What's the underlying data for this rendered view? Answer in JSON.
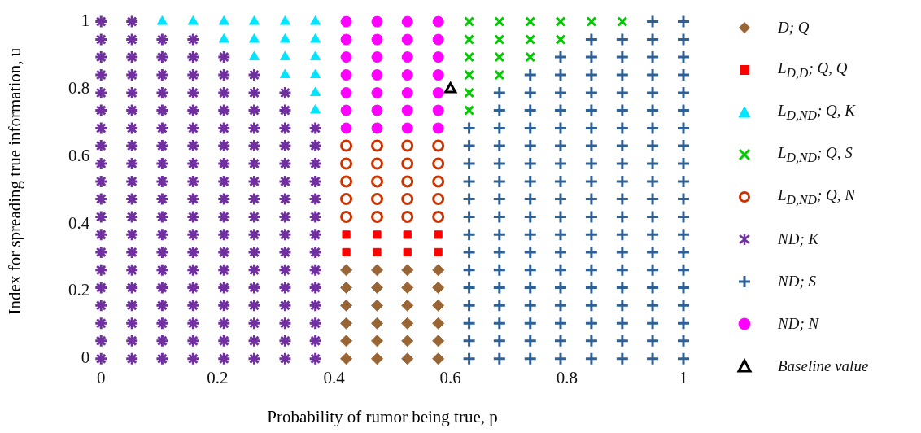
{
  "chart_data": {
    "type": "scatter",
    "xlabel": "Probability of rumor being true, p",
    "ylabel": "Index for spreading true information, u",
    "xlim": [
      0,
      1
    ],
    "ylim": [
      0,
      1
    ],
    "xticks": [
      0,
      0.2,
      0.4,
      0.6,
      0.8,
      1
    ],
    "yticks": [
      0,
      0.2,
      0.4,
      0.6,
      0.8,
      1
    ],
    "grid": false,
    "legend": "right",
    "series": [
      {
        "name": "D; Q",
        "color": "#9a6535",
        "marker": "diamond",
        "x": [
          0.421,
          0.421,
          0.421,
          0.421,
          0.421,
          0.421,
          0.474,
          0.474,
          0.474,
          0.474,
          0.474,
          0.474,
          0.526,
          0.526,
          0.526,
          0.526,
          0.526,
          0.526,
          0.579,
          0.579,
          0.579,
          0.579,
          0.579,
          0.579
        ],
        "values": [
          0,
          0.053,
          0.105,
          0.158,
          0.211,
          0.263,
          0,
          0.053,
          0.105,
          0.158,
          0.211,
          0.263,
          0,
          0.053,
          0.105,
          0.158,
          0.211,
          0.263,
          0,
          0.053,
          0.105,
          0.158,
          0.211,
          0.263
        ]
      },
      {
        "name": "L$_{D,D}$; Q, Q",
        "color": "#ff0000",
        "marker": "square",
        "x": [
          0.421,
          0.421,
          0.474,
          0.474,
          0.526,
          0.526,
          0.579,
          0.579
        ],
        "values": [
          0.316,
          0.368,
          0.316,
          0.368,
          0.316,
          0.368,
          0.316,
          0.368
        ]
      },
      {
        "name": "L$_{D,ND}$; Q, K",
        "color": "#00e5ff",
        "marker": "triangle",
        "x": [
          0.105,
          0.158,
          0.211,
          0.211,
          0.263,
          0.263,
          0.263,
          0.316,
          0.316,
          0.316,
          0.316,
          0.368,
          0.368,
          0.368,
          0.368,
          0.368,
          0.368
        ],
        "values": [
          1,
          1,
          1,
          0.947,
          1,
          0.947,
          0.895,
          1,
          0.947,
          0.895,
          0.842,
          1,
          0.947,
          0.895,
          0.842,
          0.789,
          0.737
        ]
      },
      {
        "name": "L$_{D,ND}$; Q, S",
        "color": "#00cc00",
        "marker": "x",
        "x": [
          0.632,
          0.632,
          0.632,
          0.632,
          0.632,
          0.632,
          0.684,
          0.684,
          0.684,
          0.684,
          0.737,
          0.737,
          0.737,
          0.789,
          0.789,
          0.842,
          0.895
        ],
        "values": [
          1,
          0.947,
          0.895,
          0.842,
          0.789,
          0.737,
          1,
          0.947,
          0.895,
          0.842,
          1,
          0.947,
          0.895,
          1,
          0.947,
          1,
          1
        ]
      },
      {
        "name": "L$_{D,ND}$; Q, N",
        "color": "#cc3300",
        "marker": "circle-open",
        "x": [
          0.421,
          0.421,
          0.421,
          0.421,
          0.421,
          0.474,
          0.474,
          0.474,
          0.474,
          0.474,
          0.526,
          0.526,
          0.526,
          0.526,
          0.526,
          0.579,
          0.579,
          0.579,
          0.579,
          0.579
        ],
        "values": [
          0.421,
          0.474,
          0.526,
          0.579,
          0.632,
          0.421,
          0.474,
          0.526,
          0.579,
          0.632,
          0.421,
          0.474,
          0.526,
          0.579,
          0.632,
          0.421,
          0.474,
          0.526,
          0.579,
          0.632
        ]
      },
      {
        "name": "ND; K",
        "color": "#7030a0",
        "marker": "cross",
        "x": [
          0,
          0,
          0,
          0,
          0,
          0,
          0,
          0,
          0,
          0,
          0,
          0,
          0,
          0,
          0,
          0,
          0,
          0,
          0,
          0,
          0.053,
          0.053,
          0.053,
          0.053,
          0.053,
          0.053,
          0.053,
          0.053,
          0.053,
          0.053,
          0.053,
          0.053,
          0.053,
          0.053,
          0.053,
          0.053,
          0.053,
          0.053,
          0.053,
          0.053,
          0.105,
          0.105,
          0.105,
          0.105,
          0.105,
          0.105,
          0.105,
          0.105,
          0.105,
          0.105,
          0.105,
          0.105,
          0.105,
          0.105,
          0.105,
          0.105,
          0.105,
          0.105,
          0.105,
          0.158,
          0.158,
          0.158,
          0.158,
          0.158,
          0.158,
          0.158,
          0.158,
          0.158,
          0.158,
          0.158,
          0.158,
          0.158,
          0.158,
          0.158,
          0.158,
          0.158,
          0.158,
          0.158,
          0.211,
          0.211,
          0.211,
          0.211,
          0.211,
          0.211,
          0.211,
          0.211,
          0.211,
          0.211,
          0.211,
          0.211,
          0.211,
          0.211,
          0.211,
          0.211,
          0.211,
          0.211,
          0.263,
          0.263,
          0.263,
          0.263,
          0.263,
          0.263,
          0.263,
          0.263,
          0.263,
          0.263,
          0.263,
          0.263,
          0.263,
          0.263,
          0.263,
          0.263,
          0.263,
          0.316,
          0.316,
          0.316,
          0.316,
          0.316,
          0.316,
          0.316,
          0.316,
          0.316,
          0.316,
          0.316,
          0.316,
          0.316,
          0.316,
          0.316,
          0.316,
          0.368,
          0.368,
          0.368,
          0.368,
          0.368,
          0.368,
          0.368,
          0.368,
          0.368,
          0.368,
          0.368,
          0.368,
          0.368,
          0.368
        ],
        "values": [
          0,
          0.053,
          0.105,
          0.158,
          0.211,
          0.263,
          0.316,
          0.368,
          0.421,
          0.474,
          0.526,
          0.579,
          0.632,
          0.684,
          0.737,
          0.789,
          0.842,
          0.895,
          0.947,
          1,
          0,
          0.053,
          0.105,
          0.158,
          0.211,
          0.263,
          0.316,
          0.368,
          0.421,
          0.474,
          0.526,
          0.579,
          0.632,
          0.684,
          0.737,
          0.789,
          0.842,
          0.895,
          0.947,
          1,
          0,
          0.053,
          0.105,
          0.158,
          0.211,
          0.263,
          0.316,
          0.368,
          0.421,
          0.474,
          0.526,
          0.579,
          0.632,
          0.684,
          0.737,
          0.789,
          0.842,
          0.895,
          0.947,
          0,
          0.053,
          0.105,
          0.158,
          0.211,
          0.263,
          0.316,
          0.368,
          0.421,
          0.474,
          0.526,
          0.579,
          0.632,
          0.684,
          0.737,
          0.789,
          0.842,
          0.895,
          0.947,
          0,
          0.053,
          0.105,
          0.158,
          0.211,
          0.263,
          0.316,
          0.368,
          0.421,
          0.474,
          0.526,
          0.579,
          0.632,
          0.684,
          0.737,
          0.789,
          0.842,
          0.895,
          0,
          0.053,
          0.105,
          0.158,
          0.211,
          0.263,
          0.316,
          0.368,
          0.421,
          0.474,
          0.526,
          0.579,
          0.632,
          0.684,
          0.737,
          0.789,
          0.842,
          0,
          0.053,
          0.105,
          0.158,
          0.211,
          0.263,
          0.316,
          0.368,
          0.421,
          0.474,
          0.526,
          0.579,
          0.632,
          0.684,
          0.737,
          0.789,
          0,
          0.053,
          0.105,
          0.158,
          0.211,
          0.263,
          0.316,
          0.368,
          0.421,
          0.474,
          0.526,
          0.579,
          0.632,
          0.684
        ]
      },
      {
        "name": "ND; S",
        "color": "#2e6096",
        "marker": "plus",
        "x": [
          0.632,
          0.632,
          0.632,
          0.632,
          0.632,
          0.632,
          0.632,
          0.632,
          0.632,
          0.632,
          0.632,
          0.632,
          0.632,
          0.632,
          0.684,
          0.684,
          0.684,
          0.684,
          0.684,
          0.684,
          0.684,
          0.684,
          0.684,
          0.684,
          0.684,
          0.684,
          0.684,
          0.684,
          0.684,
          0.684,
          0.737,
          0.737,
          0.737,
          0.737,
          0.737,
          0.737,
          0.737,
          0.737,
          0.737,
          0.737,
          0.737,
          0.737,
          0.737,
          0.737,
          0.737,
          0.737,
          0.737,
          0.789,
          0.789,
          0.789,
          0.789,
          0.789,
          0.789,
          0.789,
          0.789,
          0.789,
          0.789,
          0.789,
          0.789,
          0.789,
          0.789,
          0.789,
          0.789,
          0.789,
          0.789,
          0.842,
          0.842,
          0.842,
          0.842,
          0.842,
          0.842,
          0.842,
          0.842,
          0.842,
          0.842,
          0.842,
          0.842,
          0.842,
          0.842,
          0.842,
          0.842,
          0.842,
          0.842,
          0.842,
          0.895,
          0.895,
          0.895,
          0.895,
          0.895,
          0.895,
          0.895,
          0.895,
          0.895,
          0.895,
          0.895,
          0.895,
          0.895,
          0.895,
          0.895,
          0.895,
          0.895,
          0.895,
          0.895,
          0.947,
          0.947,
          0.947,
          0.947,
          0.947,
          0.947,
          0.947,
          0.947,
          0.947,
          0.947,
          0.947,
          0.947,
          0.947,
          0.947,
          0.947,
          0.947,
          0.947,
          0.947,
          0.947,
          0.947,
          1,
          1,
          1,
          1,
          1,
          1,
          1,
          1,
          1,
          1,
          1,
          1,
          1,
          1,
          1,
          1,
          1,
          1,
          1,
          1
        ],
        "values": [
          0,
          0.053,
          0.105,
          0.158,
          0.211,
          0.263,
          0.316,
          0.368,
          0.421,
          0.474,
          0.526,
          0.579,
          0.632,
          0.684,
          0,
          0.053,
          0.105,
          0.158,
          0.211,
          0.263,
          0.316,
          0.368,
          0.421,
          0.474,
          0.526,
          0.579,
          0.632,
          0.684,
          0.737,
          0.789,
          0,
          0.053,
          0.105,
          0.158,
          0.211,
          0.263,
          0.316,
          0.368,
          0.421,
          0.474,
          0.526,
          0.579,
          0.632,
          0.684,
          0.737,
          0.789,
          0.842,
          0,
          0.053,
          0.105,
          0.158,
          0.211,
          0.263,
          0.316,
          0.368,
          0.421,
          0.474,
          0.526,
          0.579,
          0.632,
          0.684,
          0.737,
          0.789,
          0.842,
          0.895,
          0,
          0.053,
          0.105,
          0.158,
          0.211,
          0.263,
          0.316,
          0.368,
          0.421,
          0.474,
          0.526,
          0.579,
          0.632,
          0.684,
          0.737,
          0.789,
          0.842,
          0.895,
          0.947,
          0,
          0.053,
          0.105,
          0.158,
          0.211,
          0.263,
          0.316,
          0.368,
          0.421,
          0.474,
          0.526,
          0.579,
          0.632,
          0.684,
          0.737,
          0.789,
          0.842,
          0.895,
          0.947,
          0,
          0.053,
          0.105,
          0.158,
          0.211,
          0.263,
          0.316,
          0.368,
          0.421,
          0.474,
          0.526,
          0.579,
          0.632,
          0.684,
          0.737,
          0.789,
          0.842,
          0.895,
          0.947,
          1,
          0,
          0.053,
          0.105,
          0.158,
          0.211,
          0.263,
          0.316,
          0.368,
          0.421,
          0.474,
          0.526,
          0.579,
          0.632,
          0.684,
          0.737,
          0.789,
          0.842,
          0.895,
          0.947,
          1
        ]
      },
      {
        "name": "ND; N",
        "color": "#ff00ff",
        "marker": "circle",
        "x": [
          0.421,
          0.421,
          0.421,
          0.421,
          0.421,
          0.421,
          0.421,
          0.474,
          0.474,
          0.474,
          0.474,
          0.474,
          0.474,
          0.474,
          0.526,
          0.526,
          0.526,
          0.526,
          0.526,
          0.526,
          0.526,
          0.579,
          0.579,
          0.579,
          0.579,
          0.579,
          0.579,
          0.579
        ],
        "values": [
          0.684,
          0.737,
          0.789,
          0.842,
          0.895,
          0.947,
          1,
          0.684,
          0.737,
          0.789,
          0.842,
          0.895,
          0.947,
          1,
          0.684,
          0.737,
          0.789,
          0.842,
          0.895,
          0.947,
          1,
          0.684,
          0.737,
          0.789,
          0.842,
          0.895,
          0.947,
          1
        ]
      },
      {
        "name": "Baseline value",
        "color": "#000000",
        "marker": "triangle-open",
        "x": [
          0.6
        ],
        "values": [
          0.8
        ]
      }
    ]
  }
}
